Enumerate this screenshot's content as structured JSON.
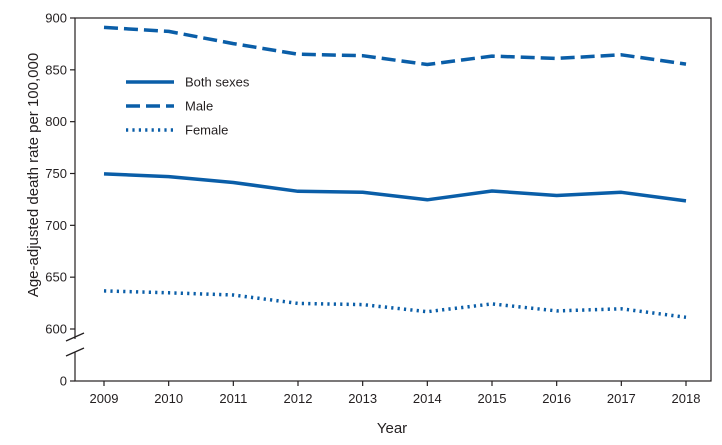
{
  "chart_data": {
    "type": "line",
    "title": "",
    "xlabel": "Year",
    "ylabel": "Age-adjusted death rate per 100,000",
    "x": [
      "2009",
      "2010",
      "2011",
      "2012",
      "2013",
      "2014",
      "2015",
      "2016",
      "2017",
      "2018"
    ],
    "ylim": [
      600,
      900
    ],
    "axis_break": true,
    "yticks": [
      "0",
      "600",
      "650",
      "700",
      "750",
      "800",
      "850",
      "900"
    ],
    "legend_position": "top-left",
    "series": [
      {
        "name": "Both sexes",
        "style": "solid",
        "values": [
          749.6,
          747.0,
          741.3,
          732.8,
          731.9,
          724.6,
          733.1,
          728.8,
          731.9,
          723.6
        ]
      },
      {
        "name": "Male",
        "style": "dashed",
        "values": [
          890.9,
          887.1,
          875.3,
          865.1,
          863.6,
          855.1,
          863.2,
          861.0,
          864.5,
          855.5
        ]
      },
      {
        "name": "Female",
        "style": "dotted",
        "values": [
          636.8,
          634.9,
          632.8,
          624.7,
          623.5,
          616.7,
          624.2,
          617.5,
          619.5,
          611.3
        ]
      }
    ],
    "color": "#0a5ea8"
  }
}
